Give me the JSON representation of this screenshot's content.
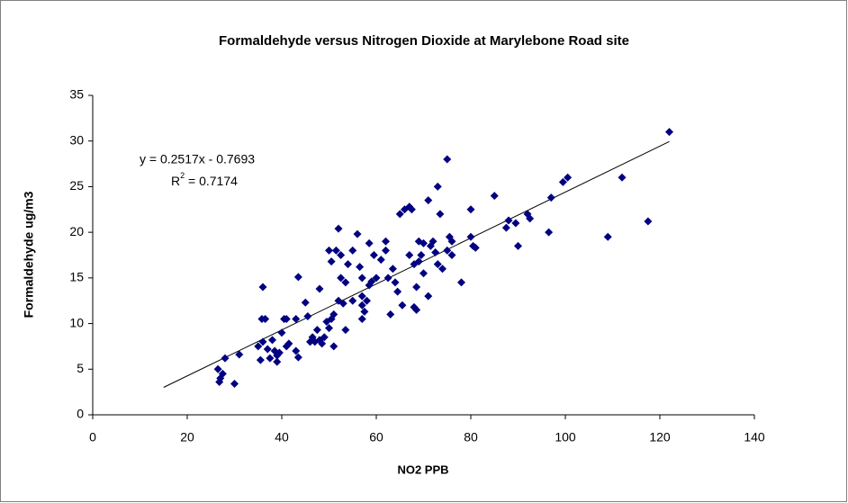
{
  "chart_data": {
    "type": "scatter",
    "title": "Formaldehyde versus Nitrogen Dioxide at Marylebone Road site",
    "x_label": "NO2 PPB",
    "y_label": "Formaldehyde ug/m3",
    "color": "#000080",
    "xlim": [
      0,
      140
    ],
    "xticks": [
      0,
      20,
      40,
      60,
      80,
      100,
      120,
      140
    ],
    "ylim": [
      0,
      35
    ],
    "yticks": [
      0,
      5,
      10,
      15,
      20,
      25,
      30,
      35
    ],
    "trendline": {
      "slope": 0.2517,
      "intercept": -0.7693,
      "x_range": [
        15,
        122
      ],
      "color": "#000000"
    },
    "equation": "y = 0.2517x - 0.7693",
    "r_squared_label": [
      "R",
      "2",
      " = 0.7174"
    ],
    "x": [
      26.5,
      26.8,
      27,
      27.5,
      28,
      30,
      31,
      35,
      35.5,
      35.8,
      36,
      36.5,
      36,
      37,
      37.5,
      38,
      38.5,
      39,
      39,
      39.5,
      40,
      40.5,
      41,
      41,
      41.5,
      43,
      43,
      43.5,
      43.5,
      45,
      45.5,
      46,
      46.5,
      47,
      47.5,
      48,
      48,
      48.5,
      49,
      49.5,
      50,
      50,
      50.5,
      50.5,
      51,
      51,
      51.5,
      52,
      52,
      52.5,
      52.5,
      53,
      53.5,
      53.5,
      54,
      55,
      55,
      56,
      56.5,
      57,
      57,
      57,
      57,
      57.5,
      58,
      58.5,
      58.5,
      59,
      59.5,
      60,
      61,
      62,
      62,
      62.5,
      63,
      63.5,
      64,
      64.5,
      65,
      65.5,
      66,
      67,
      67,
      67.5,
      68,
      68,
      68.5,
      68.5,
      69,
      69,
      69.5,
      70,
      70,
      71,
      71,
      71.5,
      72,
      72.5,
      73,
      73,
      73.5,
      74,
      75,
      75,
      75.5,
      76,
      76,
      78,
      80,
      80,
      80.5,
      81,
      85,
      87.5,
      88,
      89.5,
      90,
      92,
      92.5,
      96.5,
      97,
      99.5,
      100.5,
      109,
      112,
      117.5,
      122
    ],
    "values": [
      5.0,
      3.6,
      4.0,
      4.5,
      6.2,
      3.4,
      6.6,
      7.5,
      6.0,
      10.5,
      14.0,
      10.5,
      8.0,
      7.2,
      6.2,
      8.2,
      7.0,
      6.5,
      5.8,
      6.8,
      9.0,
      10.5,
      10.5,
      7.5,
      7.8,
      10.5,
      7.0,
      6.3,
      15.1,
      12.3,
      10.8,
      8.0,
      8.5,
      8.0,
      9.3,
      8.2,
      13.8,
      7.8,
      8.5,
      10.2,
      18.0,
      9.5,
      10.5,
      16.8,
      11.0,
      7.5,
      18.0,
      20.4,
      12.5,
      15.0,
      17.5,
      12.2,
      9.3,
      14.5,
      16.5,
      18.0,
      12.5,
      19.8,
      16.2,
      15.0,
      13.0,
      10.5,
      12.0,
      11.3,
      12.5,
      14.2,
      18.8,
      14.6,
      17.5,
      15.0,
      17.0,
      19.0,
      18.0,
      15.0,
      11.0,
      16.0,
      14.5,
      13.5,
      22.0,
      12.0,
      22.5,
      22.8,
      17.5,
      22.5,
      16.5,
      11.8,
      11.5,
      14.0,
      16.8,
      19.0,
      17.5,
      18.8,
      15.5,
      13.0,
      23.5,
      18.5,
      19.0,
      17.8,
      16.5,
      25.0,
      22.0,
      16.0,
      28.0,
      18.0,
      19.5,
      17.5,
      19.0,
      14.5,
      22.5,
      19.5,
      18.5,
      18.3,
      24.0,
      20.5,
      21.3,
      21.0,
      18.5,
      22.0,
      21.5,
      20.0,
      23.8,
      25.5,
      26.0,
      19.5,
      26.0,
      21.2,
      31.0
    ]
  }
}
